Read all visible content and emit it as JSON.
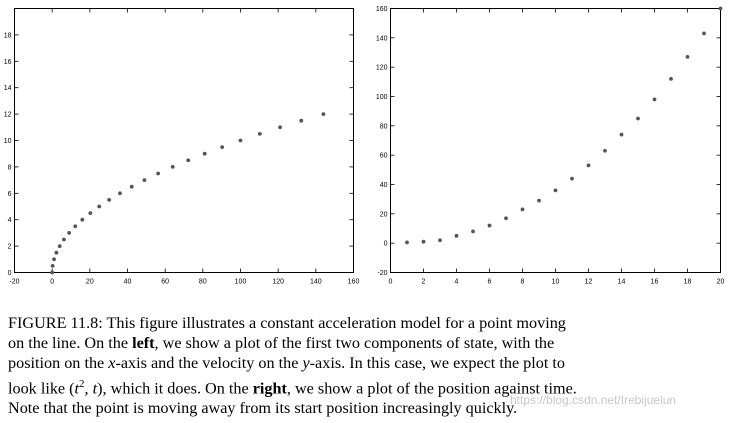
{
  "chart_data": [
    {
      "type": "scatter",
      "title": "",
      "xlabel": "",
      "ylabel": "",
      "xlim": [
        -20,
        160
      ],
      "ylim": [
        0,
        20
      ],
      "xticks": [
        -20,
        0,
        20,
        40,
        60,
        80,
        100,
        120,
        140,
        160
      ],
      "yticks": [
        0,
        2,
        4,
        6,
        8,
        10,
        12,
        14,
        16,
        18
      ],
      "grid": false,
      "color": "#555555",
      "series": [
        {
          "x": [
            0,
            0.25,
            1,
            2.25,
            4,
            6.25,
            9,
            12.25,
            16,
            20.25,
            25,
            30.25,
            36,
            42.25,
            49,
            56.25,
            64,
            72.25,
            81,
            90.25,
            100,
            110.25,
            121,
            132.25,
            144
          ],
          "y": [
            0,
            0.5,
            1,
            1.5,
            2,
            2.5,
            3,
            3.5,
            4,
            4.5,
            5,
            5.5,
            6,
            6.5,
            7,
            7.5,
            8,
            8.5,
            9,
            9.5,
            10,
            10.5,
            11,
            11.5,
            12
          ]
        }
      ]
    },
    {
      "type": "scatter",
      "title": "",
      "xlabel": "",
      "ylabel": "",
      "xlim": [
        0,
        20
      ],
      "ylim": [
        -20,
        160
      ],
      "xticks": [
        0,
        2,
        4,
        6,
        8,
        10,
        12,
        14,
        16,
        18,
        20
      ],
      "yticks": [
        -20,
        0,
        20,
        40,
        60,
        80,
        100,
        120,
        140,
        160
      ],
      "grid": false,
      "color": "#555555",
      "series": [
        {
          "x": [
            1,
            2,
            3,
            4,
            5,
            6,
            7,
            8,
            9,
            10,
            11,
            12,
            13,
            14,
            15,
            16,
            17,
            18,
            19,
            20
          ],
          "y": [
            0.5,
            1,
            2,
            5,
            8,
            12,
            17,
            23,
            29,
            36,
            44,
            53,
            63,
            74,
            85,
            98,
            112,
            127,
            143,
            160
          ]
        }
      ]
    }
  ],
  "caption": {
    "lines": [
      [
        "FIGURE 11.8:  This figure illustrates a constant acceleration model for a point moving"
      ],
      [
        "on the line.  On the ",
        {
          "b": "left"
        },
        ", we show a plot of the first two components of state, with the"
      ],
      [
        "position on the ",
        {
          "i": "x"
        },
        "-axis and the velocity on the ",
        {
          "i": "y"
        },
        "-axis. In this case, we expect the plot to"
      ],
      [
        "look like (",
        {
          "i": "t"
        },
        {
          "sup": "2"
        },
        ", ",
        {
          "i": "t"
        },
        "), which it does. On the ",
        {
          "b": "right"
        },
        ", we show a plot of the position against time."
      ],
      [
        "Note that the point is moving away from its start position increasingly quickly."
      ]
    ]
  },
  "watermark": "https://blog.csdn.net/Irebijuelun"
}
